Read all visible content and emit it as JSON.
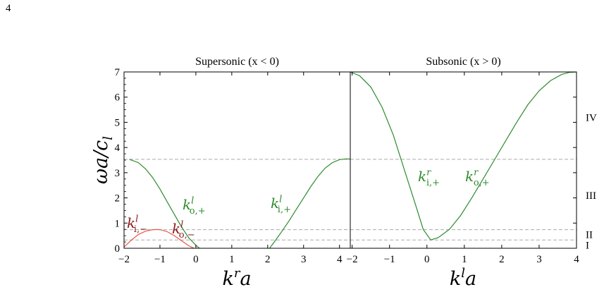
{
  "page_number": "4",
  "chart_data": [
    {
      "type": "line",
      "title": "Supersonic (x < 0)",
      "xlabel": "k^r a",
      "ylabel": "ωa/c_l",
      "xlim": [
        -2,
        4.3
      ],
      "ylim": [
        0,
        7
      ],
      "xticks": [
        -2,
        -1,
        0,
        1,
        2,
        3,
        4
      ],
      "yticks": [
        0,
        1,
        2,
        3,
        4,
        5,
        6,
        7
      ],
      "grid": false,
      "series": [
        {
          "name": "k_{i,-}^l",
          "color": "#e8574a",
          "x": [
            -2.0,
            -1.8,
            -1.6,
            -1.4,
            -1.2,
            -1.1,
            -1.0,
            -0.8,
            -0.6,
            -0.4,
            -0.2,
            -0.05
          ],
          "y": [
            0.05,
            0.32,
            0.55,
            0.68,
            0.74,
            0.745,
            0.74,
            0.66,
            0.5,
            0.3,
            0.1,
            0.0
          ]
        },
        {
          "name": "k_{o,+}^l",
          "color": "#2e8b2e",
          "x": [
            -1.85,
            -1.6,
            -1.4,
            -1.2,
            -1.0,
            -0.8,
            -0.6,
            -0.4,
            -0.2,
            0.0,
            0.1
          ],
          "y": [
            3.53,
            3.4,
            3.15,
            2.8,
            2.35,
            1.85,
            1.35,
            0.85,
            0.42,
            0.12,
            0.0
          ]
        },
        {
          "name": "k_{i,+}^l",
          "color": "#2e8b2e",
          "x": [
            2.05,
            2.2,
            2.4,
            2.6,
            2.8,
            3.0,
            3.2,
            3.4,
            3.6,
            3.8,
            4.0,
            4.2,
            4.3
          ],
          "y": [
            0.0,
            0.28,
            0.68,
            1.1,
            1.55,
            2.0,
            2.45,
            2.85,
            3.18,
            3.4,
            3.52,
            3.55,
            3.54
          ]
        }
      ],
      "hlines": [
        3.53,
        0.74,
        0.33
      ],
      "annotations": [
        {
          "text": "k_{i,−}^l",
          "base": "k",
          "sup": "l",
          "sub": "i,−",
          "color": "#8b1a1a"
        },
        {
          "text": "k_{o,−}^l",
          "base": "k",
          "sup": "l",
          "sub": "o,−",
          "color": "#8b1a1a"
        },
        {
          "text": "k_{o,+}^l",
          "base": "k",
          "sup": "l",
          "sub": "o,+",
          "color": "#2e8b2e"
        },
        {
          "text": "k_{i,+}^l",
          "base": "k",
          "sup": "l",
          "sub": "i,+",
          "color": "#2e8b2e"
        }
      ]
    },
    {
      "type": "line",
      "title": "Subsonic (x > 0)",
      "xlabel": "k^l a",
      "ylabel": "",
      "xlim": [
        -2.05,
        4
      ],
      "ylim": [
        0,
        7
      ],
      "xticks": [
        -2,
        -1,
        0,
        1,
        2,
        3,
        4
      ],
      "grid": false,
      "series": [
        {
          "name": "k^r",
          "color": "#2e8b2e",
          "x": [
            -2.05,
            -1.8,
            -1.5,
            -1.2,
            -0.9,
            -0.6,
            -0.3,
            -0.1,
            0.1,
            0.3,
            0.6,
            0.9,
            1.2,
            1.5,
            1.8,
            2.1,
            2.4,
            2.7,
            3.0,
            3.3,
            3.6,
            3.8,
            4.0
          ],
          "y": [
            7.0,
            6.85,
            6.4,
            5.6,
            4.5,
            3.1,
            1.7,
            0.75,
            0.33,
            0.42,
            0.75,
            1.3,
            2.0,
            2.75,
            3.5,
            4.25,
            5.0,
            5.7,
            6.25,
            6.65,
            6.9,
            6.98,
            7.0
          ]
        }
      ],
      "hlines": [
        3.53,
        0.74,
        0.33
      ],
      "annotations": [
        {
          "text": "k_{i,+}^r",
          "base": "k",
          "sup": "r",
          "sub": "i,+",
          "color": "#2e8b2e"
        },
        {
          "text": "k_{o,+}^r",
          "base": "k",
          "sup": "r",
          "sub": "o,+",
          "color": "#2e8b2e"
        }
      ],
      "region_labels": [
        "IV",
        "III",
        "II",
        "I"
      ]
    }
  ],
  "shared_ylabel": {
    "base": "ωa/c",
    "sub": "l"
  },
  "xlabels": [
    {
      "base": "k",
      "sup": "r",
      "tail": "a"
    },
    {
      "base": "k",
      "sup": "l",
      "tail": "a"
    }
  ],
  "colors": {
    "green": "#2e8b2e",
    "red": "#e8574a",
    "dark_red": "#8b1a1a",
    "dash": "#aaaaaa"
  }
}
